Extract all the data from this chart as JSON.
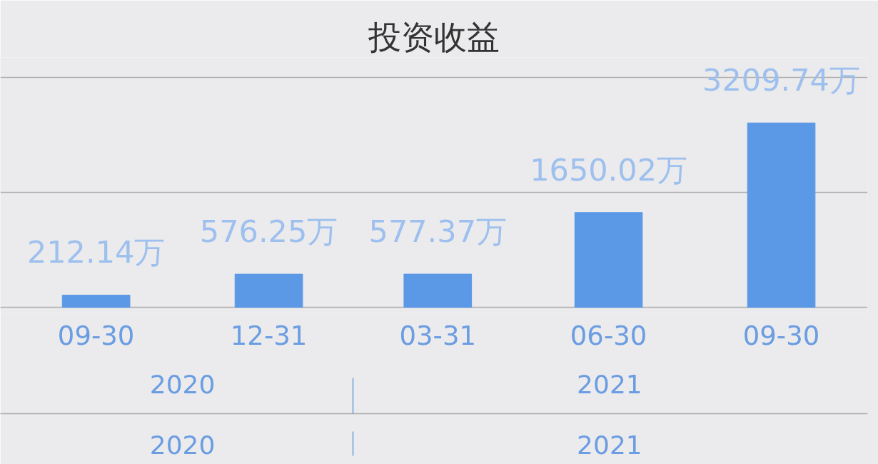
{
  "chart_data": {
    "type": "bar",
    "title": "投资收益",
    "x": [
      "2020-09-30",
      "2020-12-31",
      "2021-03-31",
      "2021-06-30",
      "2021-09-30"
    ],
    "values": [
      212.14,
      576.25,
      577.37,
      1650.02,
      3209.74
    ],
    "value_labels": [
      "212.14万",
      "576.25万",
      "577.37万",
      "1650.02万",
      "3209.74万"
    ],
    "color": "#5b98e6",
    "xlim": [
      "2020-08-10",
      "2021-11-15"
    ],
    "xticks": [
      {
        "value": "2020-09-30",
        "label": "09-30"
      },
      {
        "value": "2020-12-31",
        "label": "12-31"
      },
      {
        "value": "2021-03-31",
        "label": "03-31"
      },
      {
        "value": "2021-06-30",
        "label": "06-30"
      },
      {
        "value": "2021-09-30",
        "label": "09-30"
      }
    ],
    "ylim": [
      -100,
      4350
    ],
    "yticks": [
      {
        "value": 0,
        "label": null
      },
      {
        "value": 2000,
        "label": null
      },
      {
        "value": 4000,
        "label": null
      }
    ],
    "grid": "y",
    "tick_labels": "x",
    "annotations": [
      "2020",
      "2021",
      "2020",
      "2021"
    ]
  }
}
